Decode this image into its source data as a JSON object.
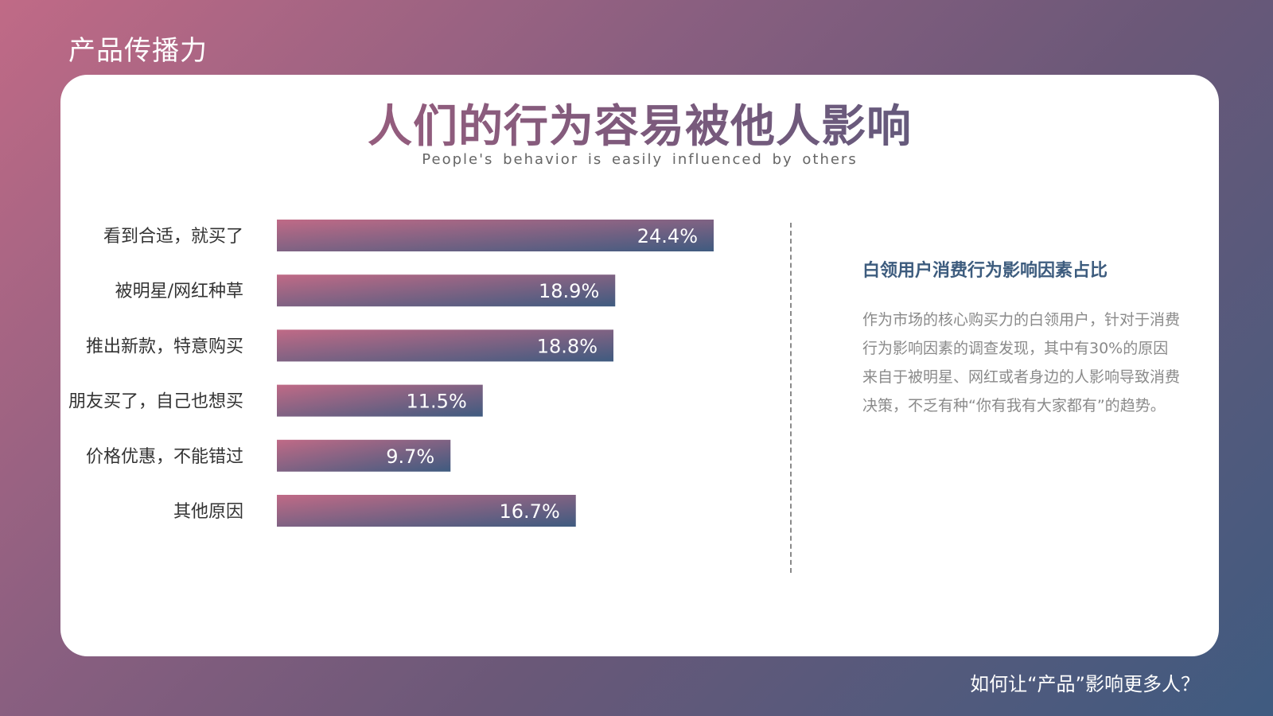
{
  "header": {
    "section_title": "产品传播力"
  },
  "footer": {
    "question": "如何让“产品”影响更多人？"
  },
  "card": {
    "title": "人们的行为容易被他人影响",
    "subtitle": "People's behavior is easily influenced by others"
  },
  "side_panel": {
    "heading": "白领用户消费行为影响因素占比",
    "body": "作为市场的核心购买力的白领用户，针对于消费行为影响因素的调查发现，其中有30%的原因来自于被明星、网红或者身边的人影响导致消费决策，不乏有种“你有我有大家都有”的趋势。"
  },
  "colors": {
    "accent_pink": "#c06a86",
    "accent_blue": "#3f5b80"
  },
  "chart_data": {
    "type": "bar",
    "orientation": "horizontal",
    "categories": [
      "看到合适，就买了",
      "被明星/网红种草",
      "推出新款，特意购买",
      "朋友买了，自己也想买",
      "价格优惠，不能错过",
      "其他原因"
    ],
    "values": [
      24.4,
      18.9,
      18.8,
      11.5,
      9.7,
      16.7
    ],
    "value_labels": [
      "24.4%",
      "18.9%",
      "18.8%",
      "11.5%",
      "9.7%",
      "16.7%"
    ],
    "unit": "%",
    "grid": false,
    "legend": false
  }
}
